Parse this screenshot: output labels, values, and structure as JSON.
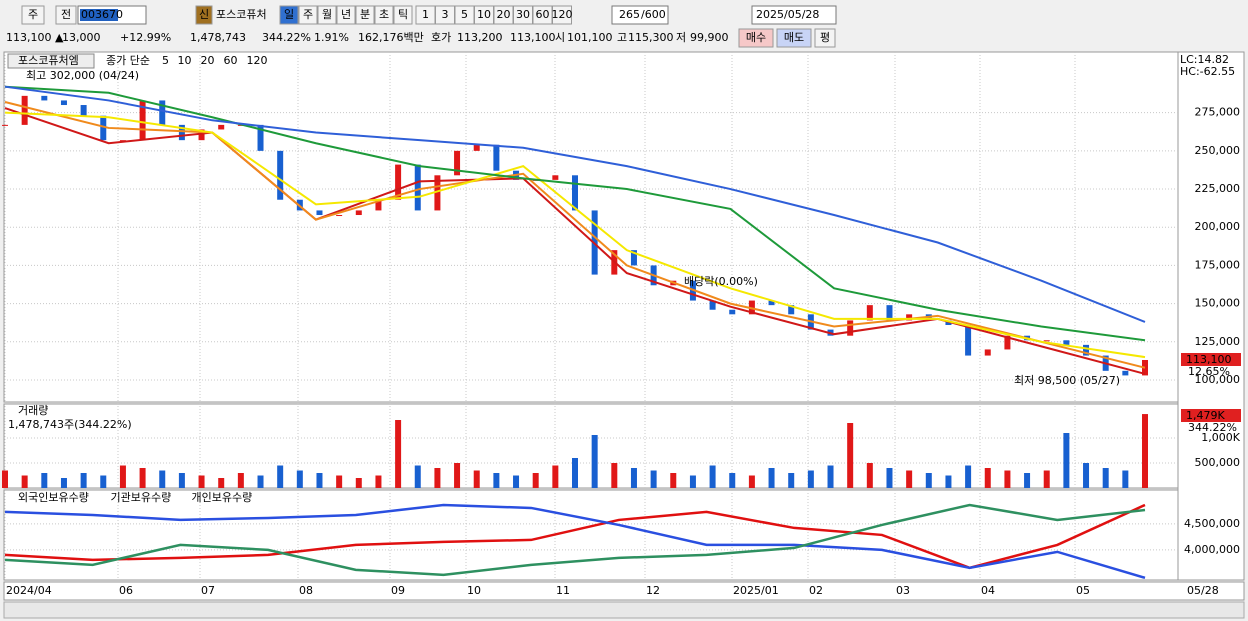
{
  "toolbar": {
    "period": "주",
    "prev": "전",
    "code": "003670",
    "new_badge": "신",
    "name": "포스코퓨처",
    "periods": [
      "일",
      "주",
      "월",
      "년",
      "분",
      "초",
      "틱"
    ],
    "counts": [
      "1",
      "3",
      "5",
      "10",
      "20",
      "30",
      "60",
      "120"
    ],
    "count": "265",
    "max": "/600",
    "date": "2025/05/28"
  },
  "quote": {
    "price": "113,100 ▲",
    "change": "13,000",
    "rate": "+12.99%",
    "volume": "1,478,743",
    "vol_ratio": "344.22%",
    "turnover": "1.91%",
    "amount": "162,176백만",
    "ask_label": "호가",
    "ask": "113,200",
    "bid": "113,100",
    "open_label": "시",
    "open": "101,100",
    "high_label": "고",
    "high": "115,300",
    "low_label": "저",
    "low": "99,900",
    "buy": "매수",
    "sell": "매도",
    "avg": "평"
  },
  "price_chart": {
    "name": "포스코퓨처엠",
    "legend_label": "종가 단순",
    "high_note": "최고 302,000 (04/24)",
    "low_note": "최저 98,500 (05/27)",
    "ex_div": "배당락(0.00%)",
    "lc": "LC:14.82",
    "hc": "HC:-62.55",
    "last_label": "113,100",
    "last_rate": "12.65%",
    "ylim": [
      85600,
      313400
    ],
    "yticks": [
      {
        "value": 100000,
        "label": "100,000"
      },
      {
        "value": 125000,
        "label": "125,000"
      },
      {
        "value": 150000,
        "label": "150,000"
      },
      {
        "value": 175000,
        "label": "175,000"
      },
      {
        "value": 200000,
        "label": "200,000"
      },
      {
        "value": 225000,
        "label": "225,000"
      },
      {
        "value": 250000,
        "label": "250,000"
      },
      {
        "value": 275000,
        "label": "275,000"
      }
    ],
    "close": [
      267000,
      286000,
      283000,
      280000,
      273000,
      257000,
      257000,
      283000,
      267000,
      257000,
      264000,
      267000,
      267000,
      250000,
      218000,
      211000,
      208000,
      208000,
      211000,
      218000,
      241000,
      211000,
      234000,
      250000,
      254000,
      237000,
      231000,
      231000,
      234000,
      211000,
      169000,
      185000,
      175000,
      162000,
      165000,
      152000,
      146000,
      143000,
      152000,
      149000,
      143000,
      133000,
      129000,
      139000,
      149000,
      139000,
      143000,
      139000,
      136000,
      116000,
      120000,
      129000,
      126000,
      126000,
      123000,
      116000,
      106000,
      103000,
      113100
    ],
    "series": [
      {
        "name": "5",
        "color": "#d01818",
        "values": [
          278000,
          255000,
          262000,
          205000,
          230000,
          232000,
          170000,
          148000,
          130000,
          140000,
          122000,
          104000
        ]
      },
      {
        "name": "10",
        "color": "#f08a1c",
        "values": [
          282000,
          265000,
          262000,
          205000,
          225000,
          235000,
          175000,
          150000,
          135000,
          142000,
          125000,
          108000
        ]
      },
      {
        "name": "20",
        "color": "#f5e800",
        "values": [
          275000,
          272000,
          262000,
          215000,
          220000,
          240000,
          185000,
          160000,
          140000,
          140000,
          125000,
          115000
        ]
      },
      {
        "name": "60",
        "color": "#1e9a3a",
        "values": [
          292000,
          288000,
          272000,
          255000,
          240000,
          232000,
          225000,
          212000,
          160000,
          146000,
          135000,
          126000
        ]
      },
      {
        "name": "120",
        "color": "#2f5fd8",
        "values": [
          292000,
          283000,
          270000,
          262000,
          257000,
          252000,
          240000,
          225000,
          208000,
          190000,
          165000,
          138000
        ]
      }
    ]
  },
  "volume_chart": {
    "title": "거래량",
    "note": "1,478,743주(344.22%)",
    "last_label": "1,479K",
    "last_rate": "344.22%",
    "ylim": [
      0,
      1620000
    ],
    "yticks": [
      {
        "value": 500000,
        "label": "500,000"
      },
      {
        "value": 1000000,
        "label": "1,000K"
      }
    ],
    "values": [
      350000,
      250000,
      300000,
      200000,
      300000,
      250000,
      450000,
      400000,
      350000,
      300000,
      250000,
      200000,
      300000,
      250000,
      450000,
      350000,
      300000,
      250000,
      200000,
      250000,
      1360000,
      450000,
      400000,
      500000,
      350000,
      300000,
      250000,
      300000,
      450000,
      600000,
      1060000,
      500000,
      400000,
      350000,
      300000,
      250000,
      450000,
      300000,
      250000,
      400000,
      300000,
      350000,
      450000,
      1300000,
      500000,
      400000,
      350000,
      300000,
      250000,
      450000,
      400000,
      350000,
      300000,
      350000,
      1100000,
      500000,
      400000,
      350000,
      1478743
    ]
  },
  "holdings_chart": {
    "ylim": [
      3420000,
      5115000
    ],
    "yticks": [
      {
        "value": 4000000,
        "label": "4,000,000"
      },
      {
        "value": 4500000,
        "label": "4,500,000"
      }
    ],
    "series": [
      {
        "name": "외국인보유수량",
        "color": "#e01010",
        "values": [
          3904000,
          3808000,
          3846000,
          3904000,
          4096000,
          4154000,
          4192000,
          4577000,
          4731000,
          4423000,
          4288000,
          3654000,
          4096000,
          4865000
        ]
      },
      {
        "name": "기관보유수량",
        "color": "#2a4fe0",
        "values": [
          4731000,
          4673000,
          4577000,
          4615000,
          4673000,
          4865000,
          4808000,
          4481000,
          4096000,
          4096000,
          4000000,
          3654000,
          3962000,
          3462000
        ]
      },
      {
        "name": "개인보유수량",
        "color": "#2e9060",
        "values": [
          3808000,
          3712000,
          4096000,
          4000000,
          3615000,
          3519000,
          3712000,
          3846000,
          3904000,
          4038000,
          4481000,
          4865000,
          4577000,
          4769000
        ]
      }
    ]
  },
  "x_axis": {
    "labels": [
      "2024/04",
      "06",
      "07",
      "08",
      "09",
      "10",
      "11",
      "12",
      "2025/01",
      "02",
      "03",
      "04",
      "05"
    ],
    "end_label": "05/28"
  }
}
